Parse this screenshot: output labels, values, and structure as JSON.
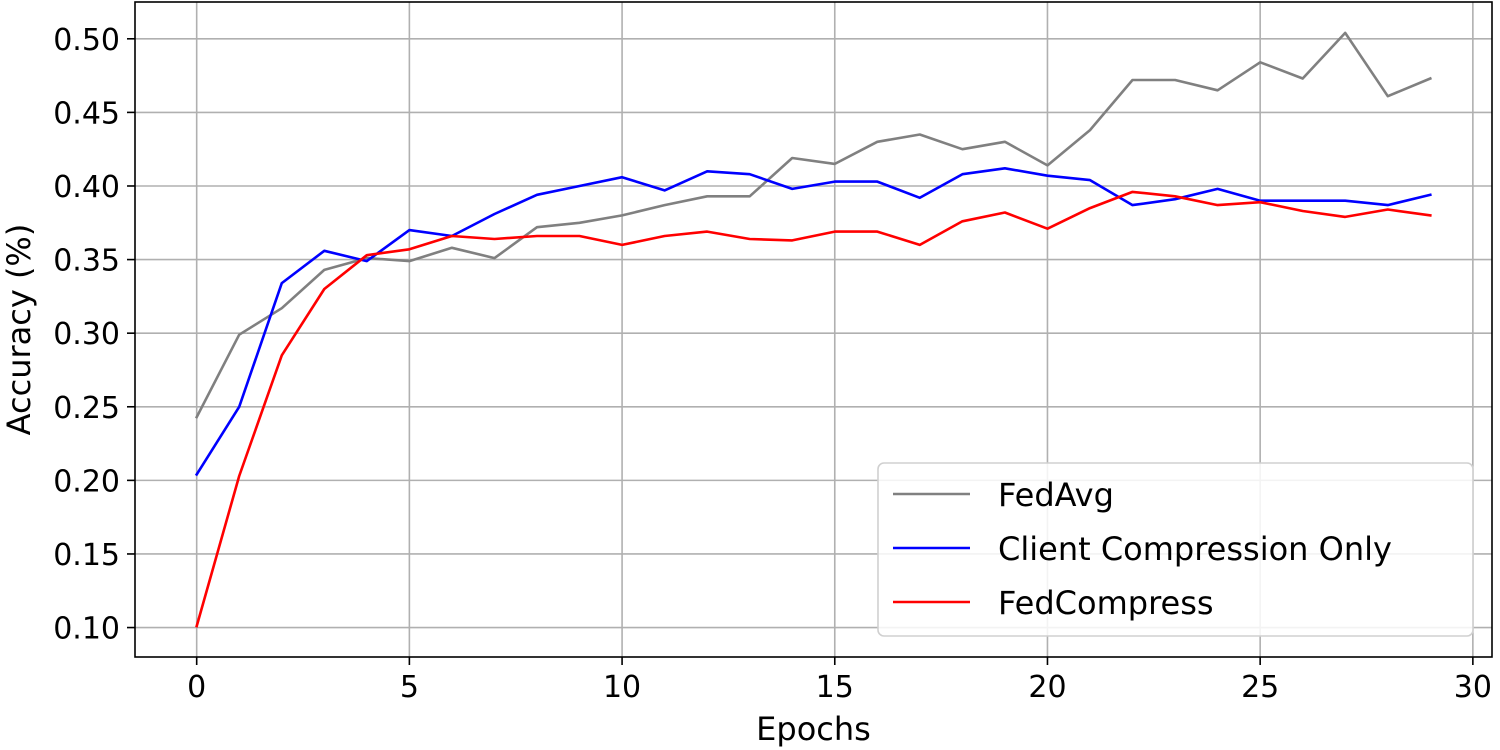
{
  "chart_data": {
    "type": "line",
    "xlabel": "Epochs",
    "ylabel": "Accuracy (%)",
    "xlim": [
      -1.45,
      30.45
    ],
    "ylim": [
      0.08,
      0.525
    ],
    "x_ticks": [
      0,
      5,
      10,
      15,
      20,
      25,
      30
    ],
    "y_ticks": [
      0.1,
      0.15,
      0.2,
      0.25,
      0.3,
      0.35,
      0.4,
      0.45,
      0.5
    ],
    "grid": true,
    "legend_position": "lower-right",
    "x": [
      0,
      1,
      2,
      3,
      4,
      5,
      6,
      7,
      8,
      9,
      10,
      11,
      12,
      13,
      14,
      15,
      16,
      17,
      18,
      19,
      20,
      21,
      22,
      23,
      24,
      25,
      26,
      27,
      28,
      29
    ],
    "series": [
      {
        "name": "FedAvg",
        "color": "#808080",
        "values": [
          0.243,
          0.299,
          0.317,
          0.343,
          0.351,
          0.349,
          0.358,
          0.351,
          0.372,
          0.375,
          0.38,
          0.387,
          0.393,
          0.393,
          0.419,
          0.415,
          0.43,
          0.435,
          0.425,
          0.43,
          0.414,
          0.438,
          0.472,
          0.472,
          0.465,
          0.484,
          0.473,
          0.504,
          0.461,
          0.473
        ]
      },
      {
        "name": "Client Compression Only",
        "color": "#0000ff",
        "values": [
          0.204,
          0.25,
          0.334,
          0.356,
          0.349,
          0.37,
          0.366,
          0.381,
          0.394,
          0.4,
          0.406,
          0.397,
          0.41,
          0.408,
          0.398,
          0.403,
          0.403,
          0.392,
          0.408,
          0.412,
          0.407,
          0.404,
          0.387,
          0.391,
          0.398,
          0.39,
          0.39,
          0.39,
          0.387,
          0.394
        ]
      },
      {
        "name": "FedCompress",
        "color": "#ff0000",
        "values": [
          0.101,
          0.203,
          0.285,
          0.33,
          0.353,
          0.357,
          0.366,
          0.364,
          0.366,
          0.366,
          0.36,
          0.366,
          0.369,
          0.364,
          0.363,
          0.369,
          0.369,
          0.36,
          0.376,
          0.382,
          0.371,
          0.385,
          0.396,
          0.393,
          0.387,
          0.389,
          0.383,
          0.379,
          0.384,
          0.38
        ]
      }
    ]
  }
}
